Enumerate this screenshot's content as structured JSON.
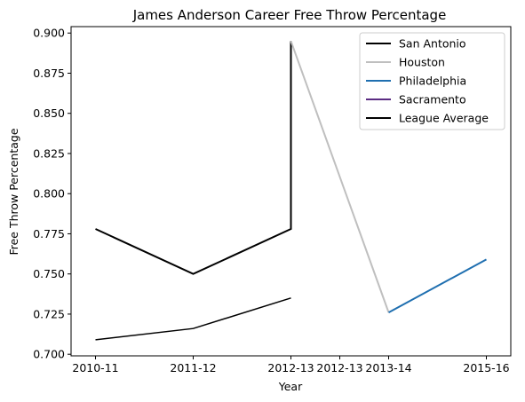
{
  "chart_data": {
    "type": "line",
    "title": "James Anderson  Career Free Throw Percentage",
    "xlabel": "Year",
    "ylabel": "Free Throw Percentage",
    "x_tick_labels": [
      "2010-11",
      "2011-12",
      "2012-13",
      "2012-13",
      "2013-14",
      "2015-16"
    ],
    "xlim": [
      -0.25,
      4.25
    ],
    "ylim": [
      0.699,
      0.904
    ],
    "y_ticks": [
      0.7,
      0.725,
      0.75,
      0.775,
      0.8,
      0.825,
      0.85,
      0.875,
      0.9
    ],
    "y_tick_labels": [
      "0.700",
      "0.725",
      "0.750",
      "0.775",
      "0.800",
      "0.825",
      "0.850",
      "0.875",
      "0.900"
    ],
    "grid": false,
    "legend_position": "top-right",
    "series": [
      {
        "name": "San Antonio",
        "color": "#000000",
        "width": 2,
        "points": [
          [
            0,
            0.778
          ],
          [
            1,
            0.75
          ],
          [
            2,
            0.778
          ],
          [
            2,
            0.895
          ]
        ]
      },
      {
        "name": "Houston",
        "color": "#bfbfbf",
        "width": 2,
        "points": [
          [
            2,
            0.895
          ],
          [
            3,
            0.726
          ]
        ]
      },
      {
        "name": "Philadelphia",
        "color": "#1f6fb0",
        "width": 2,
        "points": [
          [
            3,
            0.726
          ],
          [
            4,
            0.759
          ]
        ]
      },
      {
        "name": "Sacramento",
        "color": "#5b2c83",
        "width": 2,
        "points": []
      },
      {
        "name": "League Average",
        "color": "#000000",
        "width": 1.5,
        "points": [
          [
            0,
            0.709
          ],
          [
            1,
            0.716
          ],
          [
            2,
            0.735
          ]
        ]
      }
    ]
  }
}
